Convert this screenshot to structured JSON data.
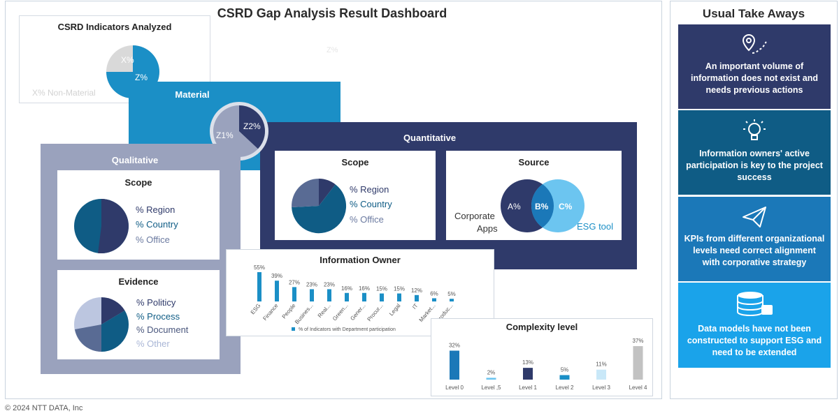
{
  "dashboard": {
    "title": "CSRD Gap Analysis Result Dashboard",
    "footer": "© 2024 NTT DATA, Inc"
  },
  "colors": {
    "navy": "#2f3a6a",
    "teal": "#0f5c85",
    "blue": "#1b8fc6",
    "light_blue": "#6cc5f0",
    "grey": "#9aa2bd",
    "ring": "#dbe0ea"
  },
  "indicators": {
    "title": "CSRD Indicators Analyzed",
    "slice_small": "X%",
    "slice_large": "Z%",
    "caption": "X% Non-Material",
    "faint_label": "Z%"
  },
  "material": {
    "title": "Material",
    "slice_small": "Z2%",
    "slice_large": "Z1%"
  },
  "qualitative": {
    "title": "Qualitative",
    "scope": {
      "title": "Scope",
      "legend": [
        "% Region",
        "% Country",
        "% Office"
      ]
    },
    "evidence": {
      "title": "Evidence",
      "legend": [
        "% Politicy",
        "% Process",
        "% Document",
        "% Other"
      ]
    }
  },
  "quantitative": {
    "title": "Quantitative",
    "scope": {
      "title": "Scope",
      "legend": [
        "% Region",
        "% Country",
        "% Office"
      ]
    },
    "source": {
      "title": "Source",
      "left_value": "A%",
      "overlap_value": "B%",
      "right_value": "C%",
      "left_label_1": "Corporate",
      "left_label_2": "Apps",
      "right_label": "ESG tool"
    }
  },
  "takeaways": {
    "title": "Usual Take Aways",
    "items": [
      {
        "icon": "location-pin-icon",
        "text": "An important volume of information does not exist and needs previous actions"
      },
      {
        "icon": "lightbulb-icon",
        "text": "Information owners' active participation is key to the project success"
      },
      {
        "icon": "paper-plane-icon",
        "text": "KPIs from different organizational levels need correct alignment with corporative strategy"
      },
      {
        "icon": "database-icon",
        "text": "Data models have not been constructed to support ESG and need to be extended"
      }
    ]
  },
  "chart_data": [
    {
      "type": "bar",
      "title": "Information Owner",
      "categories": [
        "ESG",
        "Finance",
        "People",
        "Busines...",
        "Real...",
        "Green...",
        "Gener...",
        "Procur...",
        "Legal",
        "IT",
        "Market...",
        "Produc..."
      ],
      "values": [
        55,
        39,
        27,
        23,
        23,
        16,
        16,
        15,
        15,
        12,
        6,
        5
      ],
      "data_labels": [
        "55%",
        "39%",
        "27%",
        "23%",
        "23%",
        "16%",
        "16%",
        "15%",
        "15%",
        "12%",
        "6%",
        "5%"
      ],
      "series": [
        {
          "name": "% of Indicators with Department participation",
          "values": [
            55,
            39,
            27,
            23,
            23,
            16,
            16,
            15,
            15,
            12,
            6,
            5
          ]
        }
      ],
      "ylim": [
        0,
        55
      ],
      "legend_position": "bottom",
      "grid": false
    },
    {
      "type": "bar",
      "title": "Complexity level",
      "categories": [
        "Level 0",
        "Level ,5",
        "Level 1",
        "Level 2",
        "Level 3",
        "Level 4"
      ],
      "values": [
        32,
        2,
        13,
        5,
        11,
        37
      ],
      "data_labels": [
        "32%",
        "2%",
        "13%",
        "5%",
        "11%",
        "37%"
      ],
      "colors": [
        "#1b78b8",
        "#6cc5f0",
        "#2f3a6a",
        "#1b8fc6",
        "#c9e8f8",
        "#c2c2c2"
      ],
      "ylim": [
        0,
        37
      ],
      "grid": false
    },
    {
      "type": "pie",
      "title": "CSRD Indicators Analyzed",
      "labels": [
        "X%",
        "Z%"
      ],
      "values": [
        30,
        70
      ]
    },
    {
      "type": "pie",
      "title": "Material",
      "labels": [
        "Z2%",
        "Z1%"
      ],
      "values": [
        38,
        62
      ]
    },
    {
      "type": "pie",
      "title": "Qualitative Scope",
      "labels": [
        "% Region",
        "% Country",
        "% Office"
      ],
      "values": [
        52,
        48,
        0
      ]
    },
    {
      "type": "pie",
      "title": "Qualitative Evidence",
      "labels": [
        "% Politicy",
        "% Process",
        "% Document",
        "% Other"
      ],
      "values": [
        16,
        28,
        23,
        33
      ]
    },
    {
      "type": "pie",
      "title": "Quantitative Scope",
      "labels": [
        "% Region",
        "% Country",
        "% Office"
      ],
      "values": [
        10,
        65,
        25
      ]
    }
  ]
}
